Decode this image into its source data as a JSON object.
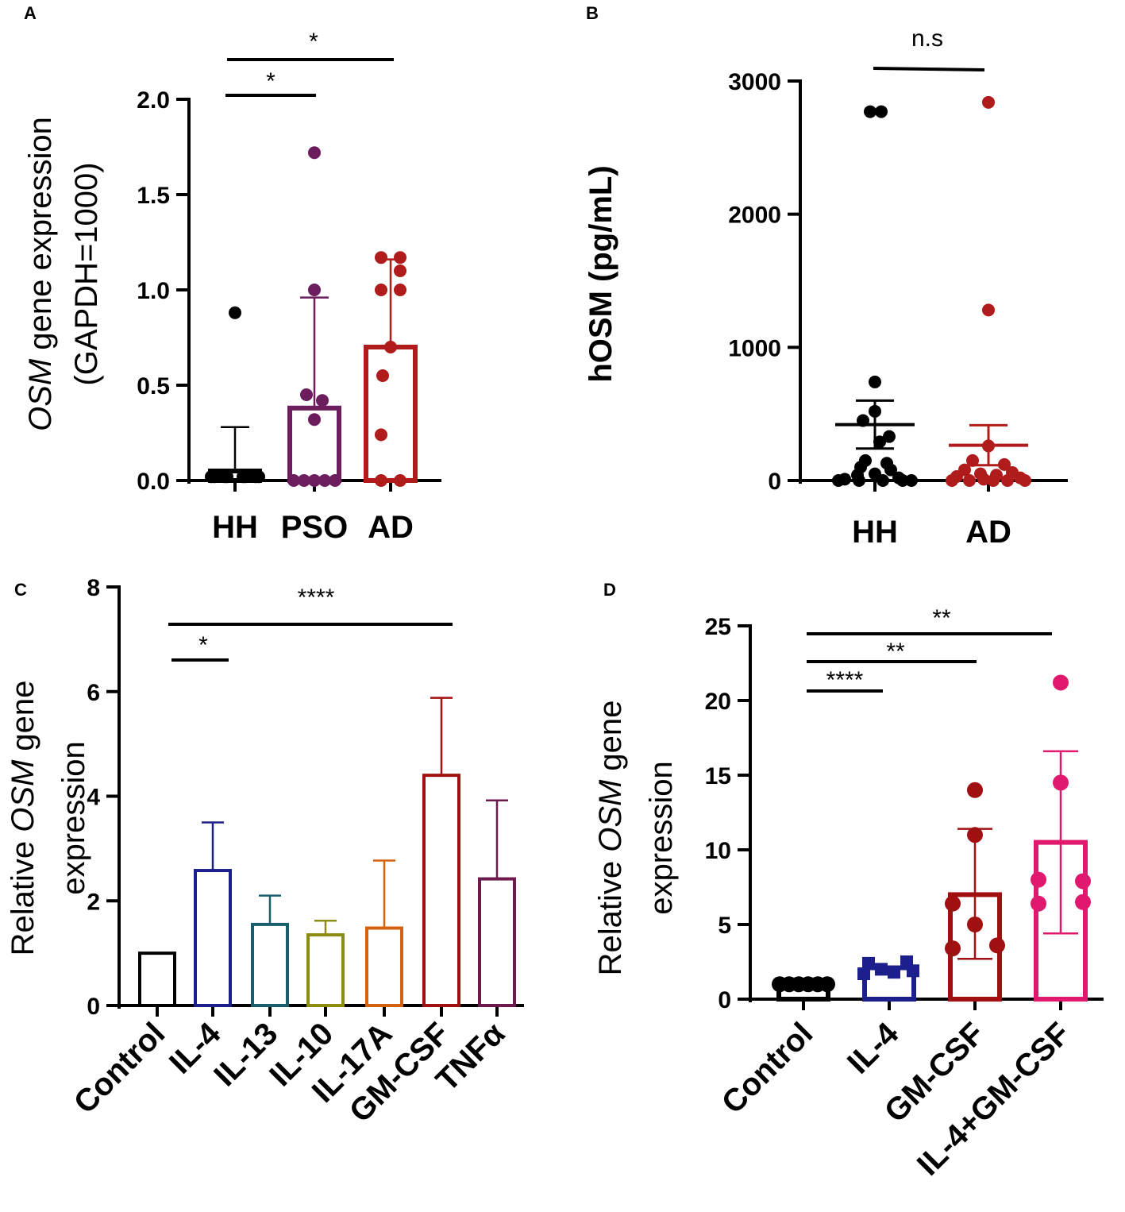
{
  "figure": {
    "panels": [
      "A",
      "B",
      "C",
      "D"
    ],
    "colors": {
      "black": "#000000",
      "purple": "#6b1d5e",
      "red": "#b01b1b",
      "navy": "#1c1f8c",
      "teal": "#1a5e6e",
      "olive": "#8c8c10",
      "orange": "#d4620f",
      "darkred": "#a01010",
      "plum": "#6e1a4e",
      "pink": "#e0186e"
    }
  },
  "chart_data": [
    {
      "panel": "A",
      "type": "bar",
      "ylabel_italic": "OSM",
      "ylabel_rest": " gene expression",
      "ylabel_line2": "(GAPDH=1000)",
      "ylim": [
        0,
        2.0
      ],
      "yticks": [
        "0.0",
        "0.5",
        "1.0",
        "1.5",
        "2.0"
      ],
      "yticks_values": [
        0,
        0.5,
        1.0,
        1.5,
        2.0
      ],
      "categories": [
        "HH",
        "PSO",
        "AD"
      ],
      "values": [
        0.05,
        0.38,
        0.7
      ],
      "sd": [
        0.28,
        0.96,
        1.16
      ],
      "points": [
        [
          0.88,
          0.02,
          0.02,
          0.02,
          0.02,
          0.02,
          0.02,
          0.02,
          0.02
        ],
        [
          1.72,
          1.0,
          0.45,
          0.42,
          0.32,
          0.0,
          0.0,
          0.0,
          0.0,
          0.0
        ],
        [
          1.17,
          1.17,
          1.1,
          1.0,
          1.0,
          0.7,
          0.55,
          0.24,
          0.0,
          0.0
        ]
      ],
      "significance": [
        {
          "from": 0,
          "to": 1,
          "label": "*"
        },
        {
          "from": 0,
          "to": 2,
          "label": "*"
        }
      ]
    },
    {
      "panel": "B",
      "type": "scatter",
      "ylabel": "hOSM (pg/mL)",
      "ylim": [
        0,
        3000
      ],
      "yticks": [
        "0",
        "1000",
        "2000",
        "3000"
      ],
      "yticks_values": [
        0,
        1000,
        2000,
        3000
      ],
      "categories": [
        "HH",
        "AD"
      ],
      "means": [
        420,
        265
      ],
      "sem": [
        180,
        150
      ],
      "points": [
        [
          2770,
          2770,
          740,
          520,
          450,
          330,
          290,
          150,
          130,
          100,
          80,
          50,
          40,
          20,
          10,
          0,
          0,
          0,
          0,
          0
        ],
        [
          2840,
          1280,
          260,
          150,
          120,
          80,
          60,
          50,
          40,
          30,
          20,
          10,
          0,
          0,
          0,
          0,
          0
        ]
      ],
      "significance": [
        {
          "from": 0,
          "to": 1,
          "label": "n.s"
        }
      ]
    },
    {
      "panel": "C",
      "type": "bar",
      "ylabel_pre": "Relative ",
      "ylabel_italic": "OSM",
      "ylabel_rest": " gene",
      "ylabel_line2": "expression",
      "ylim": [
        0,
        8
      ],
      "yticks": [
        "0",
        "2",
        "4",
        "6",
        "8"
      ],
      "yticks_values": [
        0,
        2,
        4,
        6,
        8
      ],
      "categories": [
        "Control",
        "IL-4",
        "IL-13",
        "IL-10",
        "IL-17A",
        "GM-CSF",
        "TNFα"
      ],
      "values": [
        1.0,
        2.58,
        1.55,
        1.35,
        1.48,
        4.4,
        2.42
      ],
      "sd": [
        1.0,
        3.5,
        2.1,
        1.62,
        2.77,
        5.88,
        3.92
      ],
      "significance": [
        {
          "from": 0,
          "to": 1,
          "label": "*"
        },
        {
          "from": 0,
          "to": 5,
          "label": "****"
        }
      ]
    },
    {
      "panel": "D",
      "type": "bar",
      "ylabel_pre": "Relative ",
      "ylabel_italic": "OSM",
      "ylabel_rest": " gene",
      "ylabel_line2": "expression",
      "ylim": [
        0,
        25
      ],
      "yticks": [
        "0",
        "5",
        "10",
        "15",
        "20",
        "25"
      ],
      "yticks_values": [
        0,
        5,
        10,
        15,
        20,
        25
      ],
      "categories": [
        "Control",
        "IL-4",
        "GM-CSF",
        "IL-4+GM-CSF"
      ],
      "values": [
        1.0,
        2.1,
        7.0,
        10.5
      ],
      "sd_low": [
        1.0,
        2.1,
        2.7,
        4.4
      ],
      "sd_high": [
        1.0,
        2.1,
        11.4,
        16.6
      ],
      "points": [
        [
          1,
          1,
          1,
          1,
          1,
          1
        ],
        [
          2.4,
          2.0,
          1.8,
          2.5,
          1.9,
          1.7
        ],
        [
          14.0,
          11.0,
          6.4,
          5.0,
          3.4,
          3.6
        ],
        [
          21.2,
          14.5,
          7.9,
          6.4,
          8.0,
          6.5
        ]
      ],
      "significance": [
        {
          "from": 0,
          "to": 1,
          "label": "****"
        },
        {
          "from": 0,
          "to": 2,
          "label": "**"
        },
        {
          "from": 0,
          "to": 3,
          "label": "**"
        }
      ]
    }
  ]
}
